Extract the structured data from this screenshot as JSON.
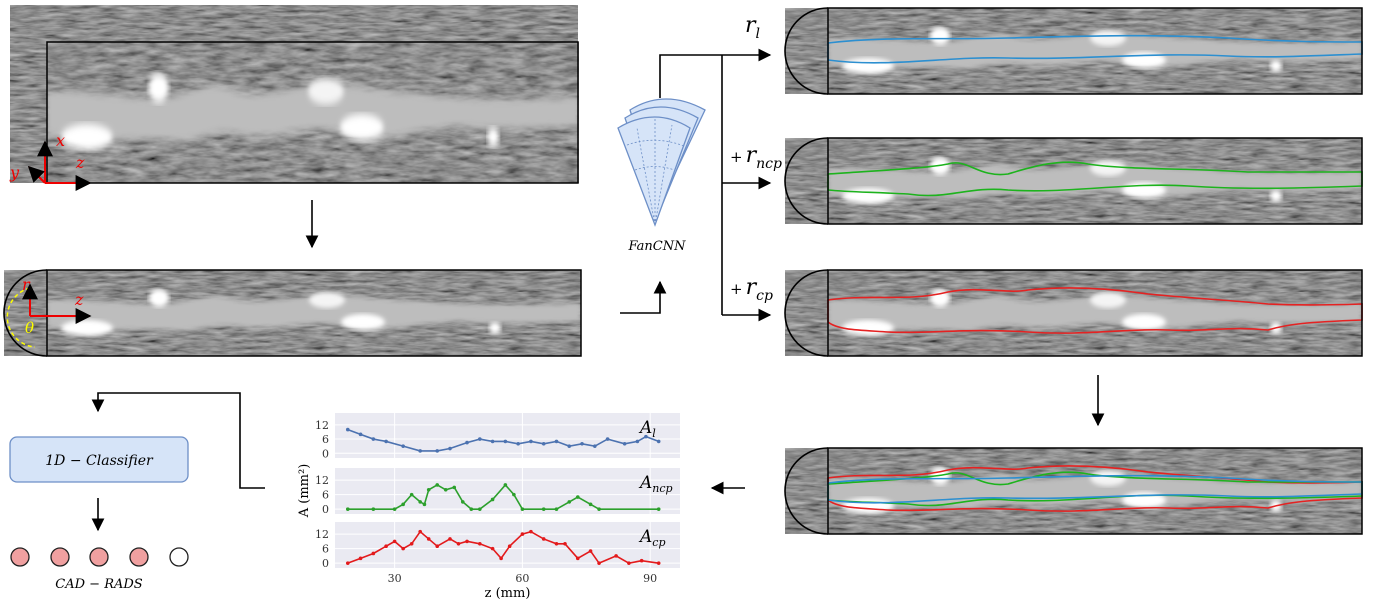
{
  "volume_axes": {
    "x": "x",
    "y": "y",
    "z": "z"
  },
  "polar_axes": {
    "r": "r",
    "z": "z",
    "theta": "θ"
  },
  "network_label": "FanCNN",
  "outputs": [
    {
      "symbol": "r",
      "subscript": "l"
    },
    {
      "prefix": "+",
      "symbol": "r",
      "subscript": "ncp"
    },
    {
      "prefix": "+",
      "symbol": "r",
      "subscript": "cp"
    }
  ],
  "classifier": {
    "label": "1D − Classifier"
  },
  "classes": {
    "label": "CAD − RADS"
  },
  "chart_data": [
    {
      "type": "line",
      "label": {
        "symbol": "A",
        "subscript": "l"
      },
      "color": "#4c72b0",
      "x": [
        19,
        22,
        25,
        28,
        32,
        36,
        40,
        43,
        47,
        50,
        53,
        56,
        59,
        62,
        65,
        68,
        71,
        74,
        77,
        80,
        84,
        87,
        89,
        92
      ],
      "values": [
        10,
        8,
        6,
        5,
        3,
        1,
        1,
        2,
        4.5,
        6,
        5,
        5,
        4,
        5,
        4,
        5,
        3,
        4,
        3,
        6,
        4,
        5,
        7,
        5
      ],
      "xlim": [
        16,
        97
      ],
      "ylim": [
        -2,
        17
      ],
      "yticks": [
        0,
        6,
        12
      ],
      "grid": true
    },
    {
      "type": "line",
      "label": {
        "symbol": "A",
        "subscript": "ncp"
      },
      "color": "#2ca02c",
      "y_label": "A (mm²)",
      "x": [
        19,
        25,
        30,
        32,
        34,
        36,
        37,
        38,
        40,
        42,
        44,
        46,
        48,
        50,
        53,
        56,
        58,
        60,
        65,
        68,
        71,
        73,
        76,
        78,
        92
      ],
      "values": [
        0,
        0,
        0,
        2,
        6,
        3,
        2,
        8,
        10,
        8,
        9,
        3,
        0,
        0,
        4,
        10,
        6,
        0,
        0,
        0,
        3,
        5,
        2,
        0,
        0
      ],
      "xlim": [
        16,
        97
      ],
      "ylim": [
        -2,
        17
      ],
      "yticks": [
        0,
        6,
        12
      ],
      "grid": true
    },
    {
      "type": "line",
      "label": {
        "symbol": "A",
        "subscript": "cp"
      },
      "color": "#e31a1c",
      "x_label": "z (mm)",
      "x": [
        19,
        22,
        25,
        28,
        30,
        32,
        34,
        36,
        38,
        40,
        43,
        45,
        47,
        50,
        53,
        55,
        57,
        60,
        62,
        65,
        68,
        70,
        73,
        76,
        78,
        82,
        85,
        88,
        92
      ],
      "values": [
        0,
        2,
        4,
        7,
        9,
        6,
        8,
        13,
        10,
        7,
        10,
        8,
        9,
        8,
        6,
        2,
        7,
        12,
        13,
        10,
        8,
        8,
        2,
        5,
        0,
        3,
        0,
        1,
        0
      ],
      "xlim": [
        16,
        97
      ],
      "ylim": [
        -2,
        17
      ],
      "yticks": [
        0,
        6,
        12
      ],
      "xticks": [
        30,
        60,
        90
      ],
      "grid": true
    }
  ]
}
